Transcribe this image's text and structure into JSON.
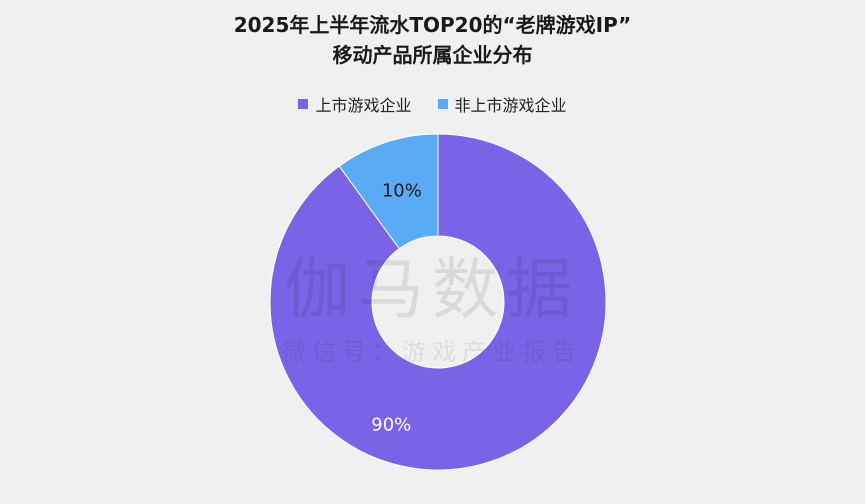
{
  "chart_data": {
    "type": "pie",
    "title_lines": [
      "2025年上半年流水TOP20的“老牌游戏IP”",
      "移动产品所属企业分布"
    ],
    "categories": [
      "上市游戏企业",
      "非上市游戏企业"
    ],
    "values": [
      90,
      10
    ],
    "value_labels": [
      "90%",
      "10%"
    ],
    "colors": [
      "#7a63e6",
      "#5aaaf6"
    ],
    "label_colors": [
      "#ffffff",
      "#1a1a1a"
    ],
    "legend_position": "top-center",
    "donut": true
  },
  "watermark": {
    "main": "伽马数据",
    "sub": "微信号：游戏产业报告"
  }
}
